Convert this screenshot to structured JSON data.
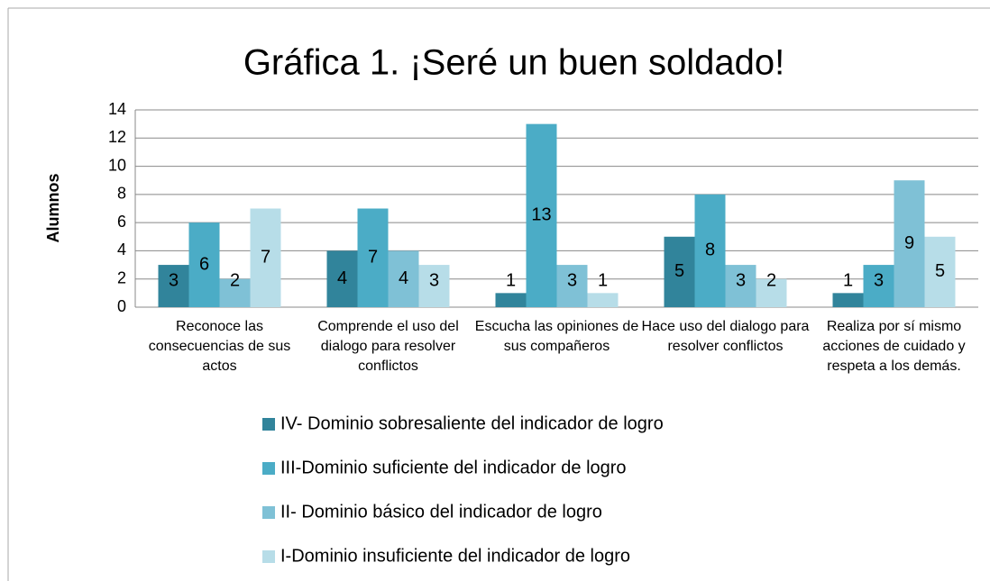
{
  "chart_data": {
    "type": "bar",
    "title": "Gráfica 1. ¡Seré un buen soldado!",
    "y_label": "Alumnos",
    "categories": [
      "Reconoce las consecuencias de sus actos",
      "Comprende el uso del dialogo para resolver conflictos",
      "Escucha las opiniones de sus compañeros",
      "Hace uso del dialogo para resolver conflictos",
      "Realiza por sí mismo acciones de cuidado y respeta a los demás."
    ],
    "series": [
      {
        "name": "IV- Dominio sobresaliente del indicador de logro",
        "color": "#31849b",
        "values": [
          3,
          4,
          1,
          5,
          1
        ]
      },
      {
        "name": "III-Dominio suficiente del indicador de logro",
        "color": "#4bacc6",
        "values": [
          6,
          7,
          13,
          8,
          3
        ]
      },
      {
        "name": "II- Dominio básico del indicador de logro",
        "color": "#7fc1d6",
        "values": [
          2,
          4,
          3,
          3,
          9
        ]
      },
      {
        "name": "I-Dominio insuficiente del indicador de logro",
        "color": "#b7dde8",
        "values": [
          7,
          3,
          1,
          2,
          5
        ]
      }
    ],
    "ylim": [
      0,
      14
    ],
    "yticks": [
      0,
      2,
      4,
      6,
      8,
      10,
      12,
      14
    ],
    "grid": true,
    "legend": "bottom"
  }
}
